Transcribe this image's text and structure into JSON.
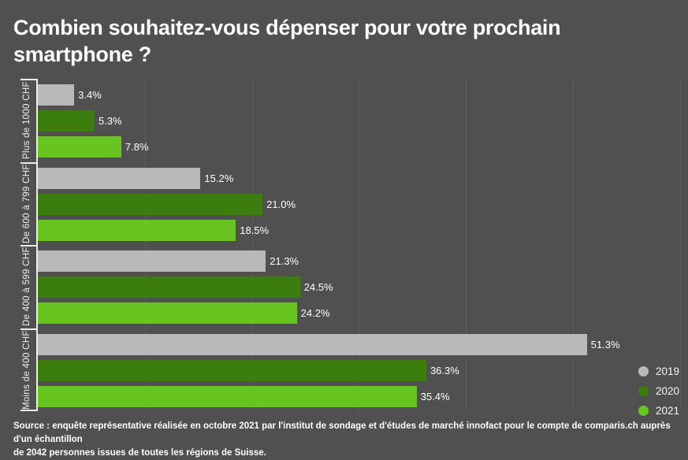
{
  "title": {
    "line1": "Combien souhaitez-vous dépenser pour votre prochain",
    "line2": "smartphone ?"
  },
  "source": {
    "line1": "Source : enquête représentative réalisée en octobre 2021 par l'institut de sondage et d'études de marché innofact pour le compte de comparis.ch auprès d'un échantillon",
    "line2": "de 2042 personnes issues de toutes les régions de Suisse."
  },
  "colors": {
    "background": "#505050",
    "gridline": "#5d5d5d",
    "axis": "#ececec",
    "text": "#ffffff"
  },
  "chart_data": {
    "type": "bar",
    "orientation": "horizontal",
    "title": "Combien souhaitez-vous dépenser pour votre prochain smartphone ?",
    "categories": [
      "Plus de 1000 CHF",
      "De 600 à 799 CHF",
      "De 400 à 599 CHF",
      "Moins de 400 CHF"
    ],
    "series": [
      {
        "name": "2019",
        "color": "#b9b9b9",
        "values": [
          3.4,
          15.2,
          21.3,
          51.3
        ],
        "labels": [
          "3.4%",
          "15.2%",
          "21.3%",
          "51.3%"
        ]
      },
      {
        "name": "2020",
        "color": "#3b7d0e",
        "values": [
          5.3,
          21.0,
          24.5,
          36.3
        ],
        "labels": [
          "5.3%",
          "21.0%",
          "24.5%",
          "36.3%"
        ]
      },
      {
        "name": "2021",
        "color": "#68c41e",
        "values": [
          7.8,
          18.5,
          24.2,
          35.4
        ],
        "labels": [
          "7.8%",
          "18.5%",
          "24.2%",
          "35.4%"
        ]
      }
    ],
    "value_suffix": "%",
    "xlim": [
      0,
      60.75
    ],
    "grid_interval": 10,
    "grid_on": true,
    "legend_position": "bottom-right",
    "legend_entries": [
      "2019",
      "2020",
      "2021"
    ]
  }
}
